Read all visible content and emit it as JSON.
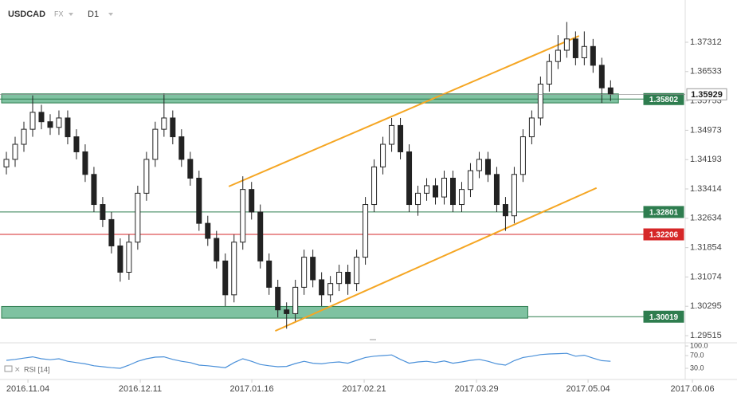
{
  "chart_data": {
    "type": "candlestick",
    "symbol": "USDCAD",
    "market": "FX",
    "timeframe": "D1",
    "x": [
      0,
      1,
      2,
      3,
      4,
      5,
      6,
      7,
      8,
      9,
      10,
      11,
      12,
      13,
      14,
      15,
      16,
      17,
      18,
      19,
      20,
      21,
      22,
      23,
      24,
      25,
      26,
      27,
      28,
      29,
      30,
      31,
      32,
      33,
      34,
      35,
      36,
      37,
      38,
      39,
      40,
      41,
      42,
      43,
      44,
      45,
      46,
      47,
      48,
      49,
      50,
      51,
      52,
      53,
      54,
      55,
      56,
      57,
      58,
      59,
      60,
      61,
      62,
      63,
      64,
      65,
      66,
      67,
      68,
      69
    ],
    "open": [
      1.34,
      1.342,
      1.346,
      1.35,
      1.3545,
      1.352,
      1.3505,
      1.353,
      1.348,
      1.344,
      1.338,
      1.33,
      1.326,
      1.319,
      1.312,
      1.32,
      1.333,
      1.342,
      1.35,
      1.353,
      1.348,
      1.342,
      1.337,
      1.325,
      1.321,
      1.315,
      1.306,
      1.32,
      1.334,
      1.328,
      1.315,
      1.308,
      1.302,
      1.301,
      1.308,
      1.316,
      1.31,
      1.306,
      1.309,
      1.312,
      1.309,
      1.316,
      1.33,
      1.34,
      1.346,
      1.351,
      1.344,
      1.33,
      1.333,
      1.335,
      1.332,
      1.337,
      1.33,
      1.334,
      1.339,
      1.342,
      1.338,
      1.33,
      1.327,
      1.338,
      1.348,
      1.353,
      1.362,
      1.368,
      1.371,
      1.374,
      1.369,
      1.372,
      1.367,
      1.361
    ],
    "high": [
      1.344,
      1.348,
      1.352,
      1.359,
      1.3565,
      1.354,
      1.355,
      1.355,
      1.35,
      1.346,
      1.34,
      1.332,
      1.328,
      1.321,
      1.322,
      1.335,
      1.344,
      1.352,
      1.3595,
      1.355,
      1.35,
      1.344,
      1.339,
      1.327,
      1.323,
      1.317,
      1.322,
      1.3375,
      1.336,
      1.33,
      1.317,
      1.31,
      1.304,
      1.31,
      1.318,
      1.318,
      1.312,
      1.311,
      1.314,
      1.314,
      1.318,
      1.332,
      1.342,
      1.348,
      1.353,
      1.353,
      1.346,
      1.335,
      1.337,
      1.337,
      1.339,
      1.339,
      1.336,
      1.341,
      1.344,
      1.344,
      1.34,
      1.332,
      1.34,
      1.35,
      1.355,
      1.364,
      1.37,
      1.375,
      1.3785,
      1.376,
      1.376,
      1.374,
      1.369,
      1.363
    ],
    "low": [
      1.338,
      1.34,
      1.344,
      1.348,
      1.35,
      1.3485,
      1.3485,
      1.346,
      1.342,
      1.336,
      1.328,
      1.324,
      1.317,
      1.3095,
      1.31,
      1.318,
      1.331,
      1.34,
      1.348,
      1.346,
      1.34,
      1.335,
      1.323,
      1.319,
      1.313,
      1.303,
      1.304,
      1.318,
      1.326,
      1.313,
      1.306,
      1.3,
      1.297,
      1.299,
      1.306,
      1.308,
      1.303,
      1.304,
      1.307,
      1.306,
      1.307,
      1.314,
      1.328,
      1.338,
      1.344,
      1.342,
      1.328,
      1.327,
      1.331,
      1.33,
      1.33,
      1.328,
      1.328,
      1.332,
      1.337,
      1.336,
      1.328,
      1.323,
      1.325,
      1.336,
      1.346,
      1.351,
      1.36,
      1.366,
      1.369,
      1.367,
      1.367,
      1.365,
      1.357,
      1.3575
    ],
    "close": [
      1.342,
      1.346,
      1.35,
      1.3545,
      1.352,
      1.3505,
      1.353,
      1.348,
      1.344,
      1.338,
      1.33,
      1.326,
      1.319,
      1.312,
      1.32,
      1.333,
      1.342,
      1.35,
      1.353,
      1.348,
      1.342,
      1.337,
      1.325,
      1.321,
      1.315,
      1.306,
      1.32,
      1.334,
      1.328,
      1.315,
      1.308,
      1.302,
      1.301,
      1.308,
      1.316,
      1.31,
      1.306,
      1.309,
      1.312,
      1.309,
      1.316,
      1.33,
      1.34,
      1.346,
      1.351,
      1.344,
      1.33,
      1.333,
      1.335,
      1.332,
      1.337,
      1.33,
      1.334,
      1.339,
      1.342,
      1.338,
      1.33,
      1.327,
      1.338,
      1.348,
      1.353,
      1.362,
      1.368,
      1.371,
      1.374,
      1.369,
      1.372,
      1.367,
      1.361,
      1.3593
    ],
    "up_color": "#ffffff",
    "down_color": "#222222",
    "xlim": [
      -0.73,
      83.44
    ],
    "xticks": [
      {
        "value": 2.46,
        "label": "2016.11.04"
      },
      {
        "value": 15.29,
        "label": "2016.12.11"
      },
      {
        "value": 28.03,
        "label": "2017.01.16"
      },
      {
        "value": 40.86,
        "label": "2017.02.21"
      },
      {
        "value": 53.69,
        "label": "2017.03.29"
      },
      {
        "value": 66.43,
        "label": "2017.05.04"
      },
      {
        "value": 78.35,
        "label": "2017.06.06"
      }
    ],
    "ylim": [
      1.29325,
      1.38435
    ],
    "yticks": [
      1.37312,
      1.36533,
      1.35753,
      1.34973,
      1.34193,
      1.33414,
      1.32634,
      1.31854,
      1.31074,
      1.30295,
      1.29515
    ],
    "current_price": 1.35929,
    "levels": [
      {
        "value": 1.35802,
        "color": "#2e7d4f"
      },
      {
        "value": 1.32801,
        "color": "#2e7d4f"
      },
      {
        "value": 1.32206,
        "color": "#d62728"
      },
      {
        "value": 1.30019,
        "color": "#2e7d4f"
      }
    ],
    "zones": [
      {
        "from": 1.357,
        "to": 1.3594,
        "x_end": 69.9,
        "color": "#5fb38a"
      },
      {
        "from": 1.2998,
        "to": 1.3029,
        "x_end": 59.55,
        "color": "#5fb38a"
      }
    ],
    "trend_lines": [
      {
        "x": [
          25.4,
          65.4
        ],
        "y": [
          1.3348,
          1.3748
        ],
        "color": "#f5a623"
      },
      {
        "x": [
          30.7,
          67.4
        ],
        "y": [
          1.2964,
          1.3344
        ],
        "color": "#f5a623"
      }
    ],
    "rsi": {
      "label": "RSI [14]",
      "color": "#4a90d9",
      "ylim": [
        0,
        100
      ],
      "yticks": [
        {
          "value": 100,
          "label": "100.0"
        },
        {
          "value": 70,
          "label": "70.0"
        },
        {
          "value": 30,
          "label": "30.0"
        }
      ],
      "values": [
        55,
        58,
        62,
        66,
        60,
        57,
        60,
        52,
        48,
        44,
        38,
        35,
        32,
        30,
        40,
        52,
        60,
        65,
        66,
        58,
        52,
        48,
        40,
        38,
        35,
        32,
        48,
        60,
        52,
        42,
        38,
        35,
        36,
        45,
        52,
        46,
        44,
        48,
        50,
        46,
        55,
        64,
        68,
        70,
        72,
        58,
        46,
        50,
        52,
        48,
        53,
        46,
        50,
        55,
        58,
        52,
        44,
        40,
        54,
        64,
        68,
        73,
        75,
        76,
        77,
        68,
        71,
        62,
        54,
        52
      ]
    }
  }
}
